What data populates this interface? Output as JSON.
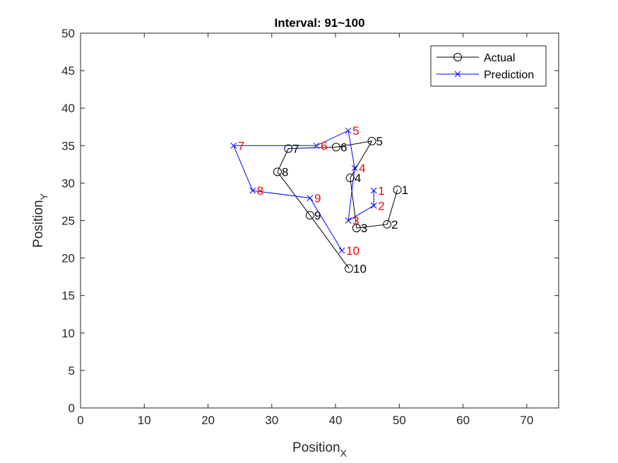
{
  "chart_data": {
    "type": "line",
    "title": "Interval: 91~100",
    "xlabel": {
      "base": "Position",
      "sub": "X"
    },
    "ylabel": {
      "base": "Position",
      "sub": "Y"
    },
    "xlim": [
      0,
      75
    ],
    "ylim": [
      0,
      50
    ],
    "xticks": [
      0,
      10,
      20,
      30,
      40,
      50,
      60,
      70
    ],
    "yticks": [
      0,
      5,
      10,
      15,
      20,
      25,
      30,
      35,
      40,
      45,
      50
    ],
    "grid": false,
    "legend_position": "top-right",
    "series": [
      {
        "name": "Actual",
        "color": "#000000",
        "marker": "circle",
        "label_color": "#000000",
        "points": [
          {
            "x": 49.7,
            "y": 29.1,
            "label": "1"
          },
          {
            "x": 48.1,
            "y": 24.5,
            "label": "2"
          },
          {
            "x": 43.3,
            "y": 24.0,
            "label": "3"
          },
          {
            "x": 42.3,
            "y": 30.7,
            "label": "4"
          },
          {
            "x": 45.7,
            "y": 35.6,
            "label": "5"
          },
          {
            "x": 40.1,
            "y": 34.8,
            "label": "6"
          },
          {
            "x": 32.6,
            "y": 34.6,
            "label": "7"
          },
          {
            "x": 30.9,
            "y": 31.5,
            "label": "8"
          },
          {
            "x": 36.0,
            "y": 25.7,
            "label": "9"
          },
          {
            "x": 42.1,
            "y": 18.6,
            "label": "10"
          }
        ]
      },
      {
        "name": "Prediction",
        "color": "#0000ff",
        "marker": "x",
        "label_color": "#ff0000",
        "points": [
          {
            "x": 46.0,
            "y": 29.0,
            "label": "1"
          },
          {
            "x": 46.0,
            "y": 27.0,
            "label": "2"
          },
          {
            "x": 42.0,
            "y": 25.0,
            "label": "3"
          },
          {
            "x": 43.0,
            "y": 32.0,
            "label": "4"
          },
          {
            "x": 42.0,
            "y": 37.0,
            "label": "5"
          },
          {
            "x": 37.0,
            "y": 35.0,
            "label": "6"
          },
          {
            "x": 24.0,
            "y": 35.0,
            "label": "7"
          },
          {
            "x": 27.0,
            "y": 29.0,
            "label": "8"
          },
          {
            "x": 36.0,
            "y": 28.0,
            "label": "9"
          },
          {
            "x": 41.0,
            "y": 21.0,
            "label": "10"
          }
        ]
      }
    ]
  }
}
